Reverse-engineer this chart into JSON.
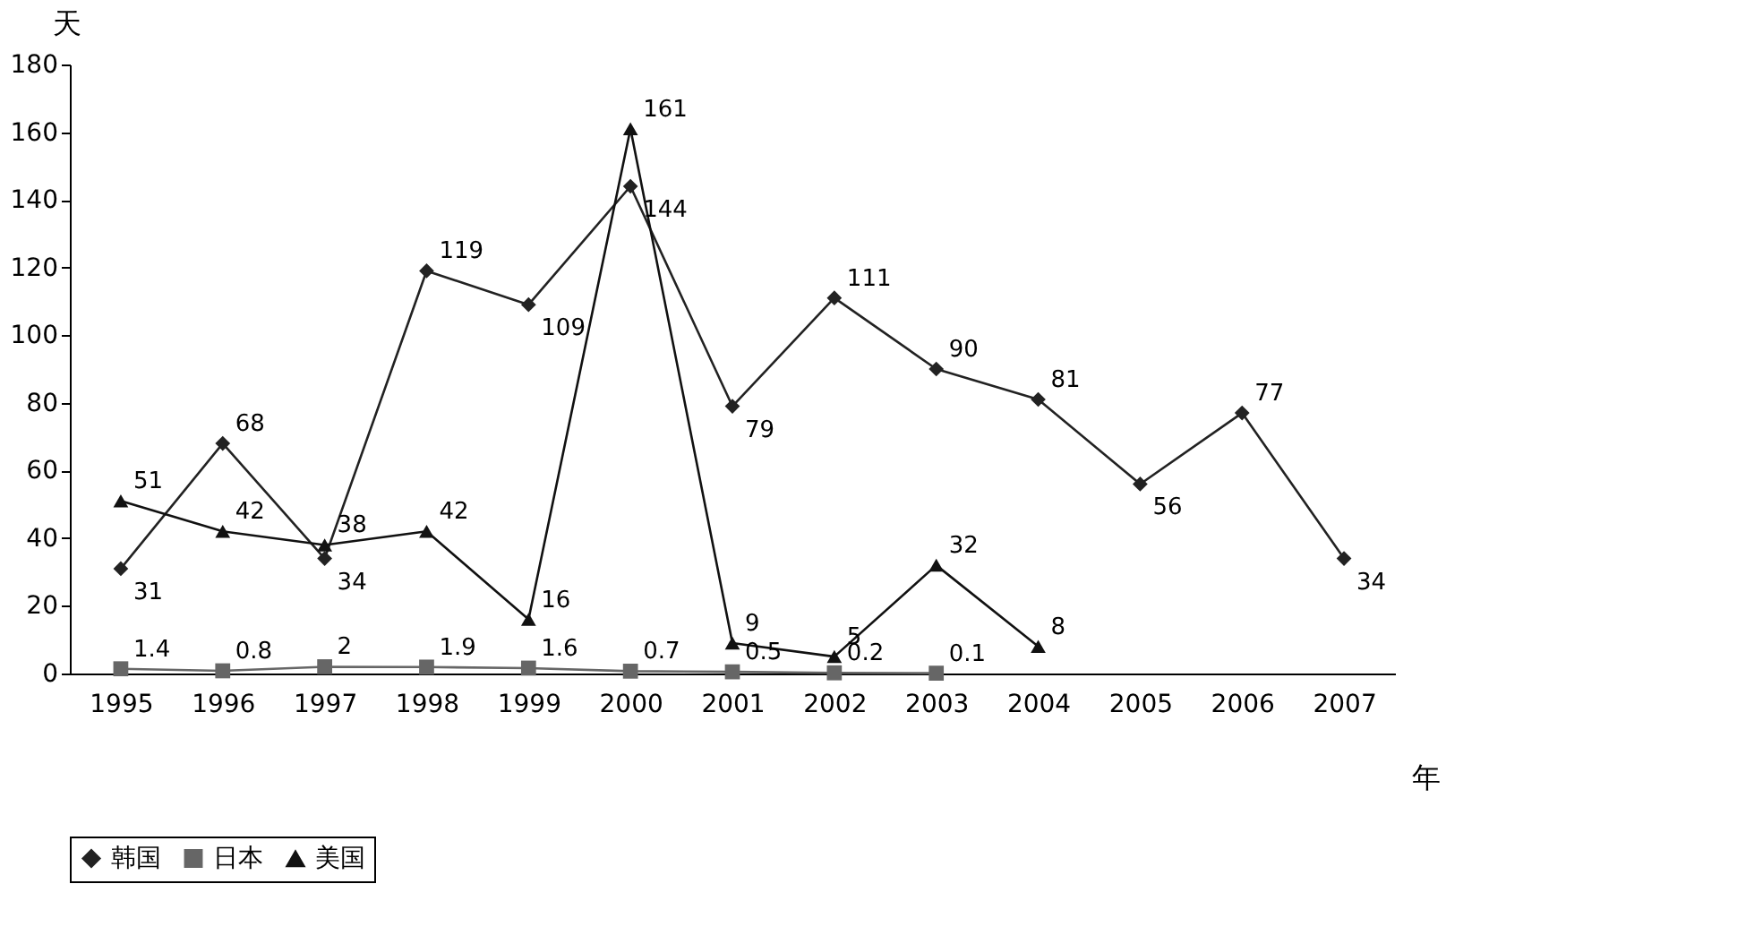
{
  "chart_data": {
    "type": "line",
    "xlabel": "年",
    "ylabel": "天",
    "categories": [
      "1995",
      "1996",
      "1997",
      "1998",
      "1999",
      "2000",
      "2001",
      "2002",
      "2003",
      "2004",
      "2005",
      "2006",
      "2007"
    ],
    "series": [
      {
        "name": "韩国",
        "color": "#222222",
        "marker": "diamond",
        "values": [
          31,
          68,
          34,
          119,
          109,
          144,
          79,
          111,
          90,
          81,
          56,
          77,
          34
        ]
      },
      {
        "name": "日本",
        "color": "#666666",
        "marker": "square",
        "values": [
          1.4,
          0.8,
          2,
          1.9,
          1.6,
          0.7,
          0.5,
          0.2,
          0.1,
          null,
          null,
          null,
          null
        ]
      },
      {
        "name": "美国",
        "color": "#111111",
        "marker": "triangle",
        "values": [
          51,
          42,
          38,
          42,
          16,
          161,
          9,
          5,
          32,
          8,
          null,
          null,
          null
        ]
      }
    ],
    "ylim": [
      0,
      180
    ],
    "yticks": [
      0,
      20,
      40,
      60,
      80,
      100,
      120,
      140,
      160,
      180
    ],
    "grid": false,
    "legend": "bottom",
    "data_labels": true,
    "line_style": "solid"
  }
}
